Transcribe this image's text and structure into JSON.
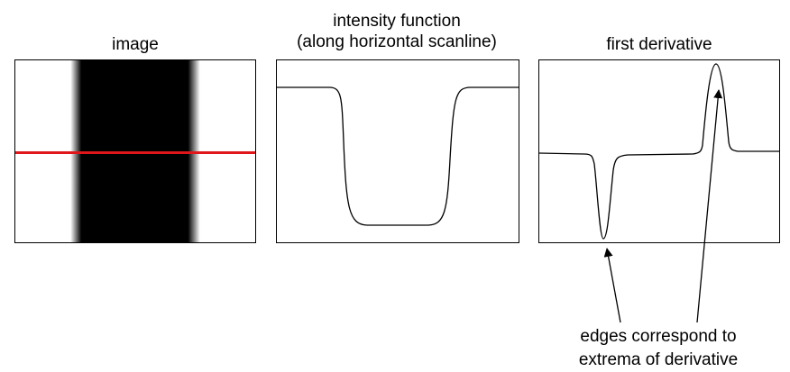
{
  "labels": {
    "image": "image",
    "intensity_line1": "intensity function",
    "intensity_line2": "(along horizontal scanline)",
    "derivative": "first derivative",
    "note_line1": "edges correspond to",
    "note_line2": "extrema of derivative"
  },
  "colors": {
    "scanline": "#e0161b",
    "dark": "#000000",
    "light": "#ffffff"
  }
}
